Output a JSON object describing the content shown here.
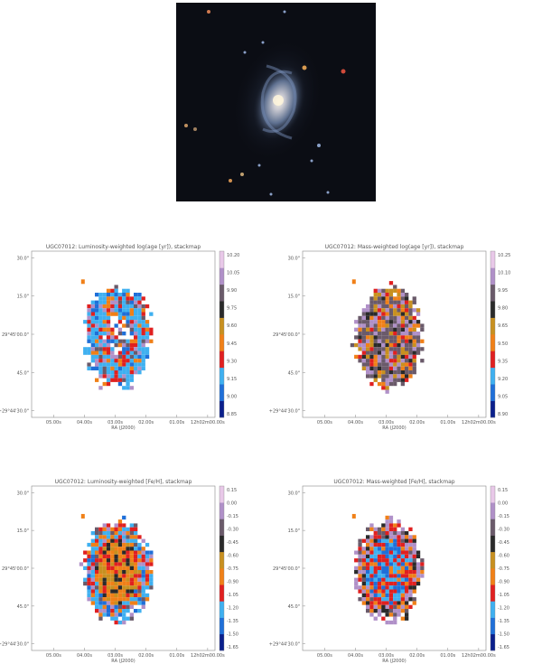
{
  "chart_data": [
    {
      "type": "heatmap",
      "title": "UGC07012: Luminosity-weighted log(age [yr]), stackmap",
      "xlabel": "RA (J2000)",
      "ylabel": "",
      "xticks": [
        "05.00s",
        "04.00s",
        "03.00s",
        "02.00s",
        "01.00s",
        "12h02m00.00s"
      ],
      "yticks": [
        "30.0\"",
        "15.0\"",
        "29°45'00.0\"",
        "45.0\"",
        "+29°44'30.0\""
      ],
      "colorbar_ticks": [
        "10.20",
        "10.05",
        "9.90",
        "9.75",
        "9.60",
        "9.45",
        "9.30",
        "9.15",
        "9.00",
        "8.85"
      ],
      "colormap": [
        "#0a1f8c",
        "#1f6fd8",
        "#3fb0f0",
        "#e02020",
        "#f08018",
        "#c89020",
        "#2a2a2a",
        "#6a5a6a",
        "#b090c8",
        "#e8c8e8"
      ],
      "value_range": [
        8.85,
        10.2
      ],
      "pattern": "blue-red mix, core sparse"
    },
    {
      "type": "heatmap",
      "title": "UGC07012: Mass-weighted log(age [yr]), stackmap",
      "xlabel": "RA (J2000)",
      "ylabel": "",
      "xticks": [
        "05.00s",
        "04.00s",
        "03.00s",
        "02.00s",
        "01.00s",
        "12h02m00.00s"
      ],
      "yticks": [
        "30.0\"",
        "15.0\"",
        "29°45'00.0\"",
        "45.0\"",
        "+29°44'30.0\""
      ],
      "colorbar_ticks": [
        "10.25",
        "10.10",
        "9.95",
        "9.80",
        "9.65",
        "9.50",
        "9.35",
        "9.20",
        "9.05",
        "8.90"
      ],
      "colormap": [
        "#0a1f8c",
        "#1f6fd8",
        "#3fb0f0",
        "#e02020",
        "#f08018",
        "#c89020",
        "#2a2a2a",
        "#6a5a6a",
        "#b090c8",
        "#e8c8e8"
      ],
      "value_range": [
        8.9,
        10.25
      ],
      "pattern": "mostly old, grey-purple"
    },
    {
      "type": "heatmap",
      "title": "UGC07012: Luminosity-weighted [Fe/H], stackmap",
      "xlabel": "RA (J2000)",
      "ylabel": "",
      "xticks": [
        "05.00s",
        "04.00s",
        "03.00s",
        "02.00s",
        "01.00s",
        "12h02m00.00s"
      ],
      "yticks": [
        "30.0\"",
        "15.0\"",
        "29°45'00.0\"",
        "45.0\"",
        "+29°44'30.0\""
      ],
      "colorbar_ticks": [
        "0.15",
        "0.00",
        "-0.15",
        "-0.30",
        "-0.45",
        "-0.60",
        "-0.75",
        "-0.90",
        "-1.05",
        "-1.20",
        "-1.35",
        "-1.50",
        "-1.65"
      ],
      "colormap": [
        "#0a1f8c",
        "#1f6fd8",
        "#3fb0f0",
        "#e02020",
        "#f08018",
        "#c89020",
        "#2a2a2a",
        "#6a5a6a",
        "#b090c8",
        "#e8c8e8"
      ],
      "value_range": [
        -1.65,
        0.15
      ],
      "pattern": "orange core, blue-red rim"
    },
    {
      "type": "heatmap",
      "title": "UGC07012: Mass-weighted [Fe/H], stackmap",
      "xlabel": "RA (J2000)",
      "ylabel": "",
      "xticks": [
        "05.00s",
        "04.00s",
        "03.00s",
        "02.00s",
        "01.00s",
        "12h02m00.00s"
      ],
      "yticks": [
        "30.0\"",
        "15.0\"",
        "29°45'00.0\"",
        "45.0\"",
        "+29°44'30.0\""
      ],
      "colorbar_ticks": [
        "0.15",
        "0.00",
        "-0.15",
        "-0.30",
        "-0.45",
        "-0.60",
        "-0.75",
        "-0.90",
        "-1.05",
        "-1.20",
        "-1.35",
        "-1.50",
        "-1.65"
      ],
      "colormap": [
        "#0a1f8c",
        "#1f6fd8",
        "#3fb0f0",
        "#e02020",
        "#f08018",
        "#c89020",
        "#2a2a2a",
        "#6a5a6a",
        "#b090c8",
        "#e8c8e8"
      ],
      "value_range": [
        -1.65,
        0.15
      ],
      "pattern": "red-blue core, purple rim"
    }
  ]
}
